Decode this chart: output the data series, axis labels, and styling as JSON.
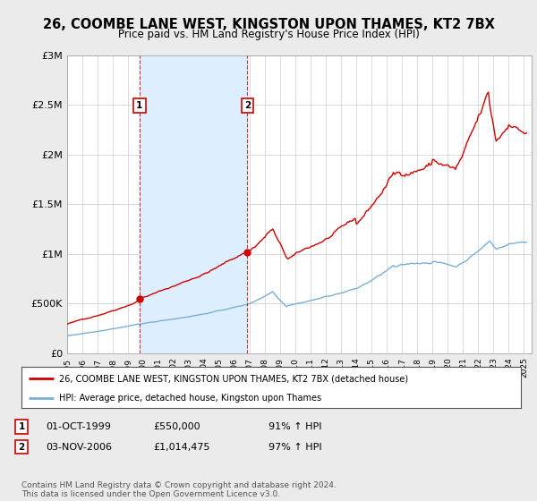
{
  "title": "26, COOMBE LANE WEST, KINGSTON UPON THAMES, KT2 7BX",
  "subtitle": "Price paid vs. HM Land Registry's House Price Index (HPI)",
  "title_fontsize": 10.5,
  "subtitle_fontsize": 8.5,
  "bg_color": "#ebebeb",
  "plot_bg_color": "#ffffff",
  "red_line_color": "#cc0000",
  "blue_line_color": "#7ab0d4",
  "shade_color": "#ddeeff",
  "legend_line1": "26, COOMBE LANE WEST, KINGSTON UPON THAMES, KT2 7BX (detached house)",
  "legend_line2": "HPI: Average price, detached house, Kingston upon Thames",
  "footer": "Contains HM Land Registry data © Crown copyright and database right 2024.\nThis data is licensed under the Open Government Licence v3.0.",
  "xlim_start": 1995.0,
  "xlim_end": 2025.5,
  "ylim": [
    0,
    3000000
  ],
  "yticks": [
    0,
    500000,
    1000000,
    1500000,
    2000000,
    2500000,
    3000000
  ],
  "ytick_labels": [
    "£0",
    "£500K",
    "£1M",
    "£1.5M",
    "£2M",
    "£2.5M",
    "£3M"
  ],
  "marker1_x": 1999.75,
  "marker2_x": 2006.83,
  "marker1_y": 550000,
  "marker2_y": 1014475,
  "marker1_label": "1",
  "marker2_label": "2"
}
